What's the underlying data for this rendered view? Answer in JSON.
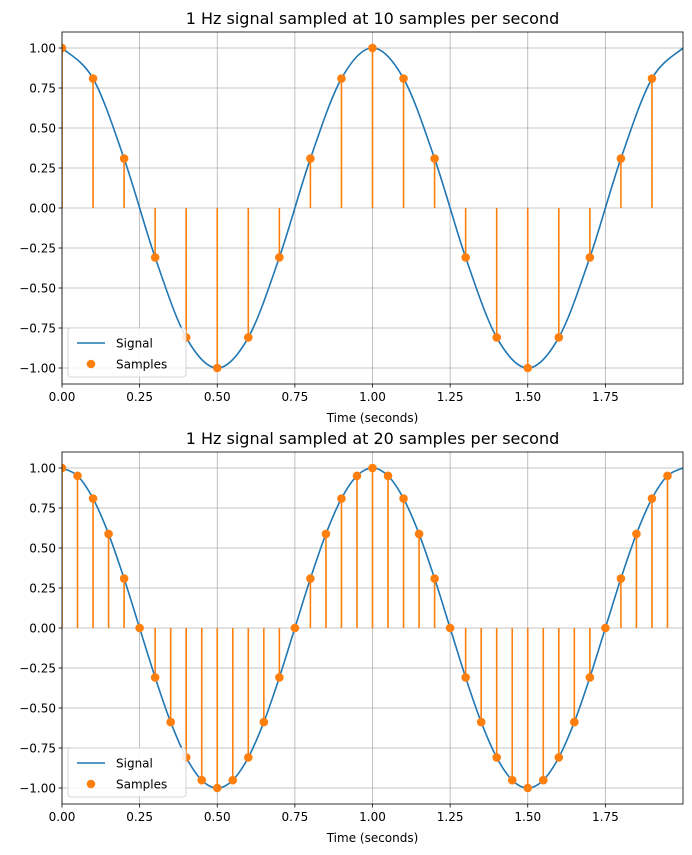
{
  "chart_data": [
    {
      "type": "line",
      "title": "1 Hz signal sampled at 10 samples per second",
      "xlabel": "Time (seconds)",
      "ylabel": "",
      "xlim": [
        0,
        2
      ],
      "ylim": [
        -1.1,
        1.1
      ],
      "xticks": [
        "0.00",
        "0.25",
        "0.50",
        "0.75",
        "1.00",
        "1.25",
        "1.50",
        "1.75"
      ],
      "yticks": [
        "1.00",
        "0.75",
        "0.50",
        "0.25",
        "0.00",
        "−0.25",
        "−0.50",
        "−0.75",
        "−1.00"
      ],
      "grid": true,
      "legend_position": "lower-left",
      "series": [
        {
          "name": "Signal",
          "style": "line",
          "color": "#1f77b4",
          "x": [
            0.0,
            0.1,
            0.2,
            0.3,
            0.4,
            0.5,
            0.6,
            0.7,
            0.8,
            0.9,
            1.0,
            1.1,
            1.2,
            1.3,
            1.4,
            1.5,
            1.6,
            1.7,
            1.8,
            1.9,
            2.0
          ],
          "y": [
            1.0,
            0.809,
            0.309,
            -0.309,
            -0.809,
            -1.0,
            -0.809,
            -0.309,
            0.309,
            0.809,
            1.0,
            0.809,
            0.309,
            -0.309,
            -0.809,
            -1.0,
            -0.809,
            -0.309,
            0.309,
            0.809,
            1.0
          ]
        },
        {
          "name": "Samples",
          "style": "stem",
          "color": "#ff7f0e",
          "x": [
            0.0,
            0.1,
            0.2,
            0.3,
            0.4,
            0.5,
            0.6,
            0.7,
            0.8,
            0.9,
            1.0,
            1.1,
            1.2,
            1.3,
            1.4,
            1.5,
            1.6,
            1.7,
            1.8,
            1.9
          ],
          "y": [
            1.0,
            0.809,
            0.309,
            -0.309,
            -0.809,
            -1.0,
            -0.809,
            -0.309,
            0.309,
            0.809,
            1.0,
            0.809,
            0.309,
            -0.309,
            -0.809,
            -1.0,
            -0.809,
            -0.309,
            0.309,
            0.809
          ]
        }
      ]
    },
    {
      "type": "line",
      "title": "1 Hz signal sampled at 20 samples per second",
      "xlabel": "Time (seconds)",
      "ylabel": "",
      "xlim": [
        0,
        2
      ],
      "ylim": [
        -1.1,
        1.1
      ],
      "xticks": [
        "0.00",
        "0.25",
        "0.50",
        "0.75",
        "1.00",
        "1.25",
        "1.50",
        "1.75"
      ],
      "yticks": [
        "1.00",
        "0.75",
        "0.50",
        "0.25",
        "0.00",
        "−0.25",
        "−0.50",
        "−0.75",
        "−1.00"
      ],
      "grid": true,
      "legend_position": "lower-left",
      "series": [
        {
          "name": "Signal",
          "style": "line",
          "color": "#1f77b4",
          "x": [
            0.0,
            0.05,
            0.1,
            0.15,
            0.2,
            0.25,
            0.3,
            0.35,
            0.4,
            0.45,
            0.5,
            0.55,
            0.6,
            0.65,
            0.7,
            0.75,
            0.8,
            0.85,
            0.9,
            0.95,
            1.0,
            1.05,
            1.1,
            1.15,
            1.2,
            1.25,
            1.3,
            1.35,
            1.4,
            1.45,
            1.5,
            1.55,
            1.6,
            1.65,
            1.7,
            1.75,
            1.8,
            1.85,
            1.9,
            1.95,
            2.0
          ],
          "y": [
            1.0,
            0.951,
            0.809,
            0.588,
            0.309,
            0.0,
            -0.309,
            -0.588,
            -0.809,
            -0.951,
            -1.0,
            -0.951,
            -0.809,
            -0.588,
            -0.309,
            0.0,
            0.309,
            0.588,
            0.809,
            0.951,
            1.0,
            0.951,
            0.809,
            0.588,
            0.309,
            0.0,
            -0.309,
            -0.588,
            -0.809,
            -0.951,
            -1.0,
            -0.951,
            -0.809,
            -0.588,
            -0.309,
            0.0,
            0.309,
            0.588,
            0.809,
            0.951,
            1.0
          ]
        },
        {
          "name": "Samples",
          "style": "stem",
          "color": "#ff7f0e",
          "x": [
            0.0,
            0.05,
            0.1,
            0.15,
            0.2,
            0.25,
            0.3,
            0.35,
            0.4,
            0.45,
            0.5,
            0.55,
            0.6,
            0.65,
            0.7,
            0.75,
            0.8,
            0.85,
            0.9,
            0.95,
            1.0,
            1.05,
            1.1,
            1.15,
            1.2,
            1.25,
            1.3,
            1.35,
            1.4,
            1.45,
            1.5,
            1.55,
            1.6,
            1.65,
            1.7,
            1.75,
            1.8,
            1.85,
            1.9,
            1.95
          ],
          "y": [
            1.0,
            0.951,
            0.809,
            0.588,
            0.309,
            0.0,
            -0.309,
            -0.588,
            -0.809,
            -0.951,
            -1.0,
            -0.951,
            -0.809,
            -0.588,
            -0.309,
            0.0,
            0.309,
            0.588,
            0.809,
            0.951,
            1.0,
            0.951,
            0.809,
            0.588,
            0.309,
            0.0,
            -0.309,
            -0.588,
            -0.809,
            -0.951,
            -1.0,
            -0.951,
            -0.809,
            -0.588,
            -0.309,
            0.0,
            0.309,
            0.588,
            0.809,
            0.951
          ]
        }
      ]
    }
  ]
}
